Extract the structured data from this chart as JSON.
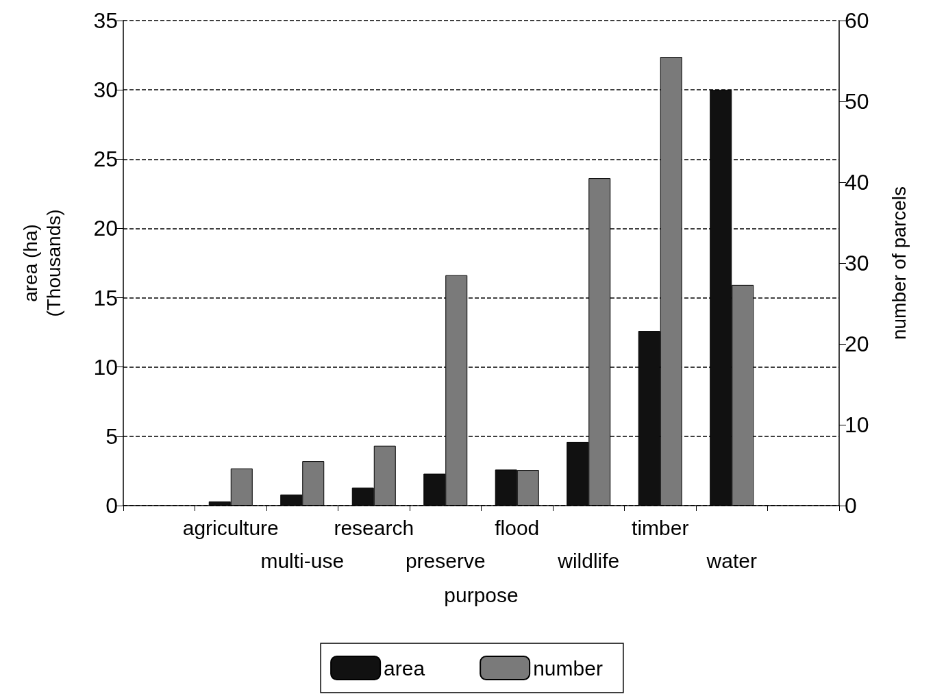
{
  "chart_data": {
    "type": "bar",
    "xlabel": "purpose",
    "ylabel": "area (ha)\n(Thousands)",
    "y2label": "number of parcels",
    "categories": [
      null,
      "agriculture",
      "multi-use",
      "research",
      "preserve",
      "flood",
      "wildlife",
      "timber",
      "water",
      null
    ],
    "series": [
      {
        "name": "area",
        "color": "#111111",
        "values": [
          null,
          0.3,
          0.8,
          1.3,
          2.3,
          2.6,
          4.6,
          12.6,
          30.0,
          null
        ]
      },
      {
        "name": "number",
        "color": "#7a7a7a",
        "axis": "y2",
        "values": [
          null,
          4.6,
          5.5,
          7.4,
          28.5,
          4.4,
          40.5,
          55.5,
          27.3,
          null
        ]
      }
    ],
    "ylim": [
      0,
      35
    ],
    "yticks": [
      0,
      5,
      10,
      15,
      20,
      25,
      30,
      35
    ],
    "y2lim": [
      0,
      60
    ],
    "y2ticks": [
      0,
      10,
      20,
      30,
      40,
      50,
      60
    ],
    "grid": "y",
    "legend": "bottom"
  }
}
